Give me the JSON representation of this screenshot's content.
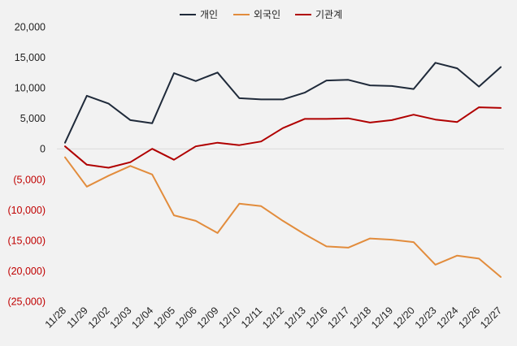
{
  "chart_data": {
    "type": "line",
    "title": "",
    "xlabel": "",
    "ylabel": "",
    "ylim": [
      -25000,
      20000
    ],
    "yticks": [
      20000,
      15000,
      10000,
      5000,
      0,
      -5000,
      -10000,
      -15000,
      -20000,
      -25000
    ],
    "ytick_labels": [
      "20,000",
      "15,000",
      "10,000",
      "5,000",
      "0",
      "(5,000)",
      "(10,000)",
      "(15,000)",
      "(20,000)",
      "(25,000)"
    ],
    "negative_tick_color": "#c00000",
    "positive_tick_color": "#222222",
    "grid": false,
    "legend": "top-center",
    "categories": [
      "11/28",
      "11/29",
      "12/02",
      "12/03",
      "12/04",
      "12/05",
      "12/06",
      "12/09",
      "12/10",
      "12/11",
      "12/12",
      "12/13",
      "12/16",
      "12/17",
      "12/18",
      "12/19",
      "12/20",
      "12/23",
      "12/24",
      "12/26",
      "12/27"
    ],
    "series": [
      {
        "name": "개인",
        "color": "#1f2a3a",
        "values": [
          1000,
          8700,
          7400,
          4700,
          4200,
          12400,
          11100,
          12500,
          8300,
          8100,
          8100,
          9200,
          11200,
          11300,
          10400,
          10300,
          9800,
          14100,
          13200,
          10200,
          13400
        ]
      },
      {
        "name": "외국인",
        "color": "#e28c3c",
        "values": [
          -1400,
          -6200,
          -4400,
          -2800,
          -4200,
          -10900,
          -11800,
          -13800,
          -9000,
          -9400,
          -11800,
          -14000,
          -16000,
          -16200,
          -14700,
          -14900,
          -15300,
          -19000,
          -17500,
          -18000,
          -21000
        ]
      },
      {
        "name": "기관계",
        "color": "#b00000",
        "values": [
          400,
          -2600,
          -3100,
          -2200,
          0,
          -1800,
          400,
          1000,
          600,
          1200,
          3400,
          4900,
          4900,
          5000,
          4300,
          4700,
          5600,
          4800,
          4400,
          6800,
          6700
        ]
      }
    ]
  }
}
